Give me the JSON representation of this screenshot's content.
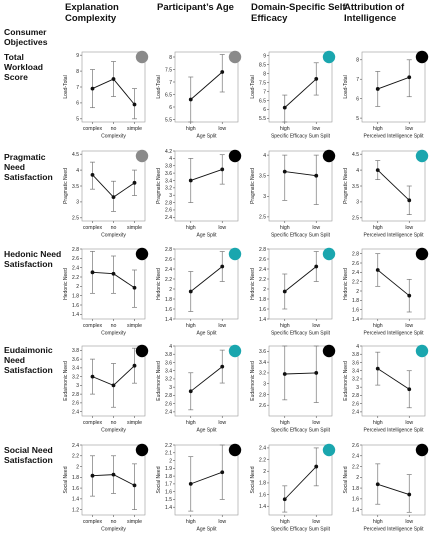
{
  "column_headers": [
    "Explanation Complexity",
    "Participant’s Age",
    "Domain-Specific Self Efficacy",
    "Attribution of Intelligence"
  ],
  "objectives_header": "Consumer Objectives",
  "row_headers": [
    "Total Workload Score",
    "Pragmatic Need Satisfaction",
    "Hedonic Need Satisfaction",
    "Eudaimonic Need Satisfaction",
    "Social Need Satisfaction"
  ],
  "colors": {
    "gray": "#8a8a8a",
    "black": "#000000",
    "teal": "#1aa6ae"
  },
  "chart_data": [
    {
      "type": "line",
      "row": 0,
      "col": 0,
      "xlabel": "Complexity",
      "ylabel": "Load-Total",
      "categories": [
        "complex",
        "no",
        "simple"
      ],
      "ylim": [
        4.8,
        9.2
      ],
      "yticks": [
        5,
        6,
        7,
        8,
        9
      ],
      "values": [
        6.9,
        7.5,
        5.9
      ],
      "lower": [
        5.7,
        6.4,
        5.0
      ],
      "upper": [
        8.1,
        8.6,
        6.9
      ],
      "marker": "gray"
    },
    {
      "type": "line",
      "row": 0,
      "col": 1,
      "xlabel": "Age Split",
      "ylabel": "Load-Total",
      "categories": [
        "high",
        "low"
      ],
      "ylim": [
        5.4,
        8.2
      ],
      "yticks": [
        5.5,
        6.0,
        6.5,
        7.0,
        7.5,
        8.0
      ],
      "values": [
        6.3,
        7.4
      ],
      "lower": [
        5.4,
        6.6
      ],
      "upper": [
        7.2,
        8.1
      ],
      "marker": "gray"
    },
    {
      "type": "line",
      "row": 0,
      "col": 2,
      "xlabel": "Specific Efficacy Sum Split",
      "ylabel": "Load-Total",
      "categories": [
        "high",
        "low"
      ],
      "ylim": [
        5.3,
        9.2
      ],
      "yticks": [
        5.5,
        6.0,
        6.5,
        7.0,
        7.5,
        8.0,
        8.5,
        9.0
      ],
      "values": [
        6.1,
        7.7
      ],
      "lower": [
        5.3,
        6.8
      ],
      "upper": [
        6.8,
        8.6
      ],
      "marker": "teal"
    },
    {
      "type": "line",
      "row": 0,
      "col": 3,
      "xlabel": "Perceived Intelligence Split",
      "ylabel": "Load-Total",
      "categories": [
        "high",
        "low"
      ],
      "ylim": [
        4.8,
        8.4
      ],
      "yticks": [
        5,
        6,
        7,
        8
      ],
      "values": [
        6.5,
        7.1
      ],
      "lower": [
        5.6,
        6.1
      ],
      "upper": [
        7.4,
        8.0
      ],
      "marker": "black"
    },
    {
      "type": "line",
      "row": 1,
      "col": 0,
      "xlabel": "Complexity",
      "ylabel": "Pragmatic Need",
      "categories": [
        "complex",
        "no",
        "simple"
      ],
      "ylim": [
        2.4,
        4.6
      ],
      "yticks": [
        2.5,
        3.0,
        3.5,
        4.0,
        4.5
      ],
      "values": [
        3.85,
        3.15,
        3.6
      ],
      "lower": [
        3.4,
        2.7,
        3.2
      ],
      "upper": [
        4.25,
        3.65,
        4.0
      ],
      "marker": "gray"
    },
    {
      "type": "line",
      "row": 1,
      "col": 1,
      "xlabel": "Age Split",
      "ylabel": "Pragmatic Need",
      "categories": [
        "high",
        "low"
      ],
      "ylim": [
        2.3,
        4.2
      ],
      "yticks": [
        2.4,
        2.6,
        2.8,
        3.0,
        3.2,
        3.4,
        3.6,
        3.8,
        4.0,
        4.2
      ],
      "values": [
        3.4,
        3.7
      ],
      "lower": [
        2.8,
        3.3
      ],
      "upper": [
        4.0,
        4.1
      ],
      "marker": "black"
    },
    {
      "type": "line",
      "row": 1,
      "col": 2,
      "xlabel": "Specific Efficacy Sum Split",
      "ylabel": "Pragmatic Need",
      "categories": [
        "high",
        "low"
      ],
      "ylim": [
        2.4,
        4.1
      ],
      "yticks": [
        2.5,
        3.0,
        3.5,
        4.0
      ],
      "values": [
        3.6,
        3.5
      ],
      "lower": [
        2.9,
        2.8
      ],
      "upper": [
        4.0,
        4.0
      ],
      "marker": "black"
    },
    {
      "type": "line",
      "row": 1,
      "col": 3,
      "xlabel": "Perceived Intelligence Split",
      "ylabel": "Pragmatic Need",
      "categories": [
        "high",
        "low"
      ],
      "ylim": [
        2.4,
        4.6
      ],
      "yticks": [
        2.5,
        3.0,
        3.5,
        4.0,
        4.5
      ],
      "values": [
        4.0,
        3.05
      ],
      "lower": [
        3.7,
        2.6
      ],
      "upper": [
        4.3,
        3.5
      ],
      "marker": "teal"
    },
    {
      "type": "line",
      "row": 2,
      "col": 0,
      "xlabel": "Complexity",
      "ylabel": "Hedonic Need",
      "categories": [
        "complex",
        "no",
        "simple"
      ],
      "ylim": [
        1.3,
        2.8
      ],
      "yticks": [
        1.4,
        1.6,
        1.8,
        2.0,
        2.2,
        2.4,
        2.6,
        2.8
      ],
      "values": [
        2.3,
        2.27,
        1.97
      ],
      "lower": [
        1.85,
        1.85,
        1.55
      ],
      "upper": [
        2.75,
        2.65,
        2.35
      ],
      "marker": "black"
    },
    {
      "type": "line",
      "row": 2,
      "col": 1,
      "xlabel": "Age Split",
      "ylabel": "Hedonic Need",
      "categories": [
        "high",
        "low"
      ],
      "ylim": [
        1.4,
        2.8
      ],
      "yticks": [
        1.4,
        1.6,
        1.8,
        2.0,
        2.2,
        2.4,
        2.6,
        2.8
      ],
      "values": [
        1.95,
        2.45
      ],
      "lower": [
        1.55,
        2.15
      ],
      "upper": [
        2.35,
        2.75
      ],
      "marker": "teal"
    },
    {
      "type": "line",
      "row": 2,
      "col": 2,
      "xlabel": "Specific Efficacy Sum Split",
      "ylabel": "Hedonic Need",
      "categories": [
        "high",
        "low"
      ],
      "ylim": [
        1.4,
        2.8
      ],
      "yticks": [
        1.4,
        1.6,
        1.8,
        2.0,
        2.2,
        2.4,
        2.6,
        2.8
      ],
      "values": [
        1.95,
        2.45
      ],
      "lower": [
        1.6,
        2.15
      ],
      "upper": [
        2.3,
        2.75
      ],
      "marker": "teal"
    },
    {
      "type": "line",
      "row": 2,
      "col": 3,
      "xlabel": "Perceived Intelligence Split",
      "ylabel": "Hedonic Need",
      "categories": [
        "high",
        "low"
      ],
      "ylim": [
        1.4,
        2.9
      ],
      "yticks": [
        1.4,
        1.6,
        1.8,
        2.0,
        2.2,
        2.4,
        2.6,
        2.8
      ],
      "values": [
        2.45,
        1.9
      ],
      "lower": [
        2.1,
        1.55
      ],
      "upper": [
        2.8,
        2.25
      ],
      "marker": "black"
    },
    {
      "type": "line",
      "row": 3,
      "col": 0,
      "xlabel": "Complexity",
      "ylabel": "Eudaimonic Need",
      "categories": [
        "complex",
        "no",
        "simple"
      ],
      "ylim": [
        2.3,
        3.9
      ],
      "yticks": [
        2.4,
        2.6,
        2.8,
        3.0,
        3.2,
        3.4,
        3.6,
        3.8
      ],
      "values": [
        3.2,
        3.0,
        3.45
      ],
      "lower": [
        2.8,
        2.5,
        3.05
      ],
      "upper": [
        3.6,
        3.5,
        3.85
      ],
      "marker": "black"
    },
    {
      "type": "line",
      "row": 3,
      "col": 1,
      "xlabel": "Age Split",
      "ylabel": "Eudaimonic Need",
      "categories": [
        "high",
        "low"
      ],
      "ylim": [
        2.3,
        4.0
      ],
      "yticks": [
        2.4,
        2.6,
        2.8,
        3.0,
        3.2,
        3.4,
        3.6,
        3.8,
        4.0
      ],
      "values": [
        2.9,
        3.5
      ],
      "lower": [
        2.45,
        3.1
      ],
      "upper": [
        3.35,
        3.9
      ],
      "marker": "teal"
    },
    {
      "type": "line",
      "row": 3,
      "col": 2,
      "xlabel": "Specific Efficacy Sum Split",
      "ylabel": "Eudaimonic Need",
      "categories": [
        "high",
        "low"
      ],
      "ylim": [
        2.4,
        3.7
      ],
      "yticks": [
        2.6,
        2.8,
        3.0,
        3.2,
        3.4,
        3.6
      ],
      "values": [
        3.18,
        3.2
      ],
      "lower": [
        2.7,
        2.65
      ],
      "upper": [
        3.7,
        3.7
      ],
      "marker": "black"
    },
    {
      "type": "line",
      "row": 3,
      "col": 3,
      "xlabel": "Perceived Intelligence Split",
      "ylabel": "Eudaimonic Need",
      "categories": [
        "high",
        "low"
      ],
      "ylim": [
        2.3,
        4.0
      ],
      "yticks": [
        2.4,
        2.6,
        2.8,
        3.0,
        3.2,
        3.4,
        3.6,
        3.8,
        4.0
      ],
      "values": [
        3.45,
        2.95
      ],
      "lower": [
        3.05,
        2.5
      ],
      "upper": [
        3.85,
        3.4
      ],
      "marker": "teal"
    },
    {
      "type": "line",
      "row": 4,
      "col": 0,
      "xlabel": "Complexity",
      "ylabel": "Social Need",
      "categories": [
        "complex",
        "no",
        "simple"
      ],
      "ylim": [
        1.1,
        2.4
      ],
      "yticks": [
        1.2,
        1.4,
        1.6,
        1.8,
        2.0,
        2.2,
        2.4
      ],
      "values": [
        1.83,
        1.85,
        1.65
      ],
      "lower": [
        1.45,
        1.5,
        1.2
      ],
      "upper": [
        2.2,
        2.2,
        2.05
      ],
      "marker": "black"
    },
    {
      "type": "line",
      "row": 4,
      "col": 1,
      "xlabel": "Age Split",
      "ylabel": "Social Need",
      "categories": [
        "high",
        "low"
      ],
      "ylim": [
        1.3,
        2.2
      ],
      "yticks": [
        1.4,
        1.5,
        1.6,
        1.7,
        1.8,
        1.9,
        2.0,
        2.1,
        2.2
      ],
      "values": [
        1.7,
        1.85
      ],
      "lower": [
        1.35,
        1.5
      ],
      "upper": [
        2.05,
        2.2
      ],
      "marker": "black"
    },
    {
      "type": "line",
      "row": 4,
      "col": 2,
      "xlabel": "Specific Efficacy Sum Split",
      "ylabel": "Social Need",
      "categories": [
        "high",
        "low"
      ],
      "ylim": [
        1.25,
        2.45
      ],
      "yticks": [
        1.4,
        1.6,
        1.8,
        2.0,
        2.2,
        2.4
      ],
      "values": [
        1.52,
        2.08
      ],
      "lower": [
        1.3,
        1.75
      ],
      "upper": [
        1.75,
        2.4
      ],
      "marker": "teal"
    },
    {
      "type": "line",
      "row": 4,
      "col": 3,
      "xlabel": "Perceived Intelligence Split",
      "ylabel": "Social Need",
      "categories": [
        "high",
        "low"
      ],
      "ylim": [
        1.3,
        2.6
      ],
      "yticks": [
        1.4,
        1.6,
        1.8,
        2.0,
        2.2,
        2.4,
        2.6
      ],
      "values": [
        1.87,
        1.68
      ],
      "lower": [
        1.5,
        1.35
      ],
      "upper": [
        2.25,
        2.05
      ],
      "marker": "black"
    }
  ]
}
